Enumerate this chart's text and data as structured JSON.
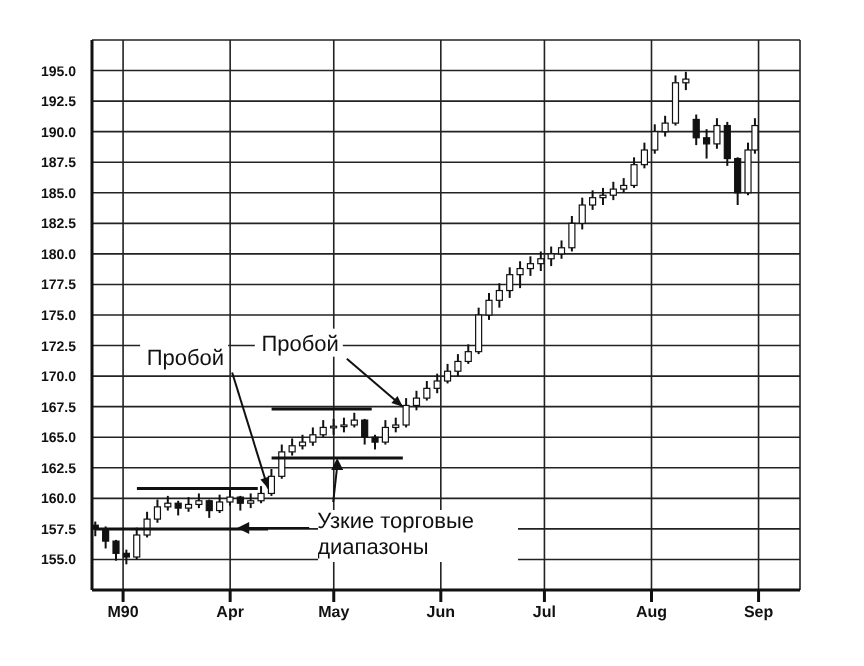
{
  "chart_data": {
    "type": "candlestick",
    "ylim": [
      152.5,
      197.5
    ],
    "yticks": [
      {
        "value": 155,
        "label": "155.0"
      },
      {
        "value": 157.5,
        "label": "157.5"
      },
      {
        "value": 160,
        "label": "160.0"
      },
      {
        "value": 162.5,
        "label": "162.5"
      },
      {
        "value": 165,
        "label": "165.0"
      },
      {
        "value": 167.5,
        "label": "167.5"
      },
      {
        "value": 170,
        "label": "170.0"
      },
      {
        "value": 172.5,
        "label": "172.5"
      },
      {
        "value": 175,
        "label": "175.0"
      },
      {
        "value": 177.5,
        "label": "177.5"
      },
      {
        "value": 180,
        "label": "180.0"
      },
      {
        "value": 182.5,
        "label": "182.5"
      },
      {
        "value": 185,
        "label": "185.0"
      },
      {
        "value": 187.5,
        "label": "187.5"
      },
      {
        "value": 190,
        "label": "190.0"
      },
      {
        "value": 192.5,
        "label": "192.5"
      },
      {
        "value": 195,
        "label": "195.0"
      }
    ],
    "xlim": [
      "1990-03-06",
      "1990-09-27"
    ],
    "xticks": [
      {
        "value": "1990-03-15",
        "label": "M90"
      },
      {
        "value": "1990-04-15",
        "label": "Apr"
      },
      {
        "value": "1990-05-15",
        "label": "May"
      },
      {
        "value": "1990-06-15",
        "label": "Jun"
      },
      {
        "value": "1990-07-15",
        "label": "Jul"
      },
      {
        "value": "1990-08-15",
        "label": "Aug"
      },
      {
        "value": "1990-09-15",
        "label": "Sep"
      }
    ],
    "grid": true,
    "color": "#111111",
    "x": [
      "1990-03-07",
      "1990-03-10",
      "1990-03-13",
      "1990-03-16",
      "1990-03-19",
      "1990-03-22",
      "1990-03-25",
      "1990-03-28",
      "1990-03-31",
      "1990-04-03",
      "1990-04-06",
      "1990-04-09",
      "1990-04-12",
      "1990-04-15",
      "1990-04-18",
      "1990-04-21",
      "1990-04-24",
      "1990-04-27",
      "1990-04-30",
      "1990-05-03",
      "1990-05-06",
      "1990-05-09",
      "1990-05-12",
      "1990-05-15",
      "1990-05-18",
      "1990-05-21",
      "1990-05-24",
      "1990-05-27",
      "1990-05-30",
      "1990-06-02",
      "1990-06-05",
      "1990-06-08",
      "1990-06-11",
      "1990-06-14",
      "1990-06-17",
      "1990-06-20",
      "1990-06-23",
      "1990-06-26",
      "1990-06-29",
      "1990-07-02",
      "1990-07-05",
      "1990-07-08",
      "1990-07-11",
      "1990-07-14",
      "1990-07-17",
      "1990-07-20",
      "1990-07-23",
      "1990-07-26",
      "1990-07-29",
      "1990-08-01",
      "1990-08-04",
      "1990-08-07",
      "1990-08-10",
      "1990-08-13",
      "1990-08-16",
      "1990-08-19",
      "1990-08-22",
      "1990-08-25",
      "1990-08-28",
      "1990-08-31",
      "1990-09-03",
      "1990-09-06",
      "1990-09-09",
      "1990-09-12",
      "1990-09-14"
    ],
    "ohlc": [
      [
        157.8,
        158.1,
        156.9,
        157.5
      ],
      [
        157.5,
        157.7,
        155.9,
        156.5
      ],
      [
        156.5,
        156.6,
        154.9,
        155.5
      ],
      [
        155.5,
        155.8,
        154.6,
        155.2
      ],
      [
        155.2,
        157.6,
        155.0,
        157.0
      ],
      [
        157.0,
        158.9,
        156.8,
        158.3
      ],
      [
        158.3,
        159.9,
        158.0,
        159.3
      ],
      [
        159.3,
        160.2,
        159.0,
        159.6
      ],
      [
        159.6,
        159.8,
        158.6,
        159.2
      ],
      [
        159.2,
        160.1,
        158.9,
        159.5
      ],
      [
        159.5,
        160.4,
        159.2,
        159.8
      ],
      [
        159.8,
        159.9,
        158.4,
        159.0
      ],
      [
        159.0,
        160.3,
        158.8,
        159.7
      ],
      [
        159.7,
        160.7,
        159.4,
        160.1
      ],
      [
        160.1,
        160.2,
        159.0,
        159.6
      ],
      [
        159.6,
        160.4,
        159.2,
        159.8
      ],
      [
        159.8,
        161.0,
        159.6,
        160.4
      ],
      [
        160.4,
        162.4,
        160.2,
        161.8
      ],
      [
        161.8,
        164.4,
        161.6,
        163.8
      ],
      [
        163.8,
        164.9,
        163.5,
        164.3
      ],
      [
        164.3,
        165.2,
        164.0,
        164.6
      ],
      [
        164.6,
        165.8,
        164.3,
        165.2
      ],
      [
        165.2,
        166.4,
        165.0,
        165.8
      ],
      [
        165.8,
        166.5,
        165.2,
        165.9
      ],
      [
        165.9,
        166.6,
        165.4,
        166.0
      ],
      [
        166.0,
        167.0,
        165.8,
        166.4
      ],
      [
        166.4,
        166.5,
        164.4,
        165.0
      ],
      [
        165.0,
        165.2,
        164.0,
        164.6
      ],
      [
        164.6,
        166.4,
        164.4,
        165.8
      ],
      [
        165.8,
        166.6,
        165.4,
        166.0
      ],
      [
        166.0,
        168.2,
        165.8,
        167.6
      ],
      [
        167.6,
        168.8,
        167.2,
        168.2
      ],
      [
        168.2,
        169.6,
        168.0,
        169.0
      ],
      [
        169.0,
        170.2,
        168.6,
        169.6
      ],
      [
        169.6,
        171.0,
        169.4,
        170.4
      ],
      [
        170.4,
        171.8,
        170.0,
        171.2
      ],
      [
        171.2,
        172.6,
        171.0,
        172.0
      ],
      [
        172.0,
        175.6,
        171.8,
        175.0
      ],
      [
        175.0,
        176.8,
        174.6,
        176.2
      ],
      [
        176.2,
        177.6,
        175.6,
        177.0
      ],
      [
        177.0,
        178.9,
        176.4,
        178.3
      ],
      [
        178.3,
        179.4,
        177.2,
        178.8
      ],
      [
        178.8,
        179.8,
        178.2,
        179.2
      ],
      [
        179.2,
        180.2,
        178.6,
        179.6
      ],
      [
        179.6,
        180.6,
        179.0,
        180.0
      ],
      [
        180.0,
        181.1,
        179.6,
        180.5
      ],
      [
        180.5,
        183.1,
        180.2,
        182.5
      ],
      [
        182.5,
        184.6,
        182.0,
        184.0
      ],
      [
        184.0,
        185.2,
        183.6,
        184.6
      ],
      [
        184.6,
        185.4,
        184.0,
        184.8
      ],
      [
        184.8,
        185.9,
        184.4,
        185.3
      ],
      [
        185.3,
        186.2,
        185.0,
        185.6
      ],
      [
        185.6,
        187.9,
        185.4,
        187.3
      ],
      [
        187.3,
        189.1,
        187.0,
        188.5
      ],
      [
        188.5,
        190.6,
        188.2,
        190.0
      ],
      [
        190.0,
        191.3,
        189.6,
        190.7
      ],
      [
        190.7,
        194.6,
        190.5,
        194.0
      ],
      [
        194.0,
        194.9,
        193.4,
        194.3
      ],
      [
        191.0,
        191.4,
        188.9,
        189.5
      ],
      [
        189.5,
        190.2,
        187.8,
        189.0
      ],
      [
        189.0,
        191.1,
        188.6,
        190.5
      ],
      [
        190.5,
        190.8,
        187.2,
        187.8
      ],
      [
        187.8,
        187.9,
        184.0,
        185.0
      ],
      [
        185.0,
        189.1,
        184.8,
        188.5
      ],
      [
        188.5,
        191.1,
        188.2,
        190.5
      ]
    ],
    "series": [
      {
        "type": "line",
        "color": "#111111",
        "x": [
          "1990-03-19",
          "1990-04-23"
        ],
        "values": [
          160.8,
          160.8
        ]
      },
      {
        "type": "line",
        "color": "#111111",
        "x": [
          "1990-03-07",
          "1990-04-26"
        ],
        "values": [
          157.5,
          157.5
        ]
      },
      {
        "type": "line",
        "color": "#111111",
        "x": [
          "1990-04-27",
          "1990-05-26"
        ],
        "values": [
          167.3,
          167.3
        ]
      },
      {
        "type": "line",
        "color": "#111111",
        "x": [
          "1990-04-27",
          "1990-06-04"
        ],
        "values": [
          163.3,
          163.3
        ]
      }
    ],
    "annotations": [
      {
        "text": "Пробой",
        "x": "1990-04-26",
        "y": 160.8
      },
      {
        "text": "Пробой",
        "x": "1990-06-04",
        "y": 167.5
      },
      {
        "text": "Узкие торговые диапазоны",
        "x": "1990-05-16",
        "y": 163.3
      }
    ]
  }
}
